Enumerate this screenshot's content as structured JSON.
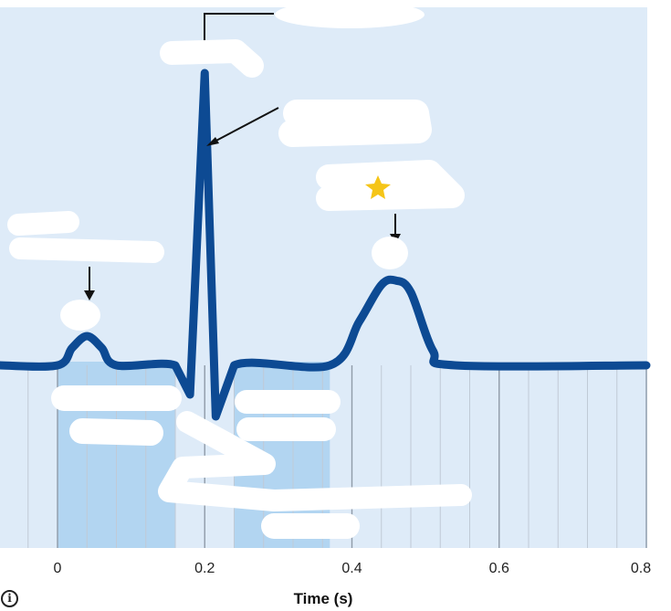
{
  "chart_data": {
    "type": "line",
    "xlabel": "Time (s)",
    "ylabel": "",
    "x_ticks": [
      "0",
      "0.2",
      "0.4",
      "0.6",
      "0.8"
    ],
    "xlim": [
      -0.1,
      0.8
    ],
    "grid": true,
    "series": [
      {
        "x": [
          -0.1,
          0.0,
          0.02,
          0.04,
          0.06,
          0.08,
          0.16,
          0.18,
          0.2,
          0.215,
          0.24,
          0.37,
          0.41,
          0.44,
          0.46,
          0.48,
          0.51,
          0.54,
          0.8
        ],
        "y": [
          0,
          0,
          0.12,
          0.2,
          0.12,
          0,
          0,
          -0.2,
          2.0,
          -0.35,
          0,
          0,
          0.3,
          0.55,
          0.58,
          0.5,
          0.1,
          0,
          0
        ]
      }
    ],
    "highlighted_intervals": [
      {
        "from": 0.0,
        "to": 0.16
      },
      {
        "from": 0.24,
        "to": 0.37
      }
    ]
  },
  "colors": {
    "plot_background": "#deebf8",
    "shaded_interval": "#b2d5f1",
    "trace": "#0d4a93",
    "grid_minor": "#c0cad6",
    "grid_major": "#8f9ba8",
    "redaction": "#ffffff",
    "star": "#f5c518"
  },
  "icons": {
    "info": "info-icon",
    "star": "star-icon"
  },
  "ui": {
    "info_glyph": "i"
  }
}
